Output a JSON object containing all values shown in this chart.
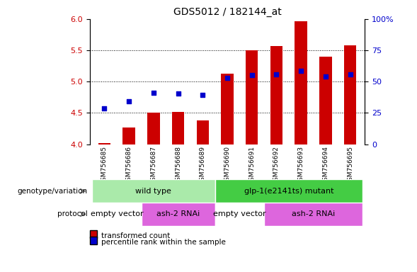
{
  "title": "GDS5012 / 182144_at",
  "samples": [
    "GSM756685",
    "GSM756686",
    "GSM756687",
    "GSM756688",
    "GSM756689",
    "GSM756690",
    "GSM756691",
    "GSM756692",
    "GSM756693",
    "GSM756694",
    "GSM756695"
  ],
  "bar_values": [
    4.02,
    4.27,
    4.5,
    4.52,
    4.38,
    5.13,
    5.5,
    5.57,
    5.97,
    5.4,
    5.58
  ],
  "dot_values": [
    4.57,
    4.68,
    4.82,
    4.81,
    4.79,
    5.06,
    5.1,
    5.11,
    5.17,
    5.08,
    5.12
  ],
  "bar_bottom": 4.0,
  "ylim_left": [
    4.0,
    6.0
  ],
  "ylim_right": [
    0,
    100
  ],
  "yticks_left": [
    4.0,
    4.5,
    5.0,
    5.5,
    6.0
  ],
  "yticks_right": [
    0,
    25,
    50,
    75,
    100
  ],
  "bar_color": "#cc0000",
  "dot_color": "#0000cc",
  "left_label_color": "#cc0000",
  "right_label_color": "#0000cc",
  "xtick_bg_color": "#cccccc",
  "genotype_groups": [
    {
      "label": "wild type",
      "start": 0,
      "end": 4,
      "color": "#aaeaaa"
    },
    {
      "label": "glp-1(e2141ts) mutant",
      "start": 5,
      "end": 10,
      "color": "#44cc44"
    }
  ],
  "protocol_groups": [
    {
      "label": "empty vector",
      "start": 0,
      "end": 1,
      "color": "#ffffff"
    },
    {
      "label": "ash-2 RNAi",
      "start": 2,
      "end": 4,
      "color": "#dd66dd"
    },
    {
      "label": "empty vector",
      "start": 5,
      "end": 6,
      "color": "#ffffff"
    },
    {
      "label": "ash-2 RNAi",
      "start": 7,
      "end": 10,
      "color": "#dd66dd"
    }
  ],
  "legend_items": [
    {
      "color": "#cc0000",
      "label": "transformed count"
    },
    {
      "color": "#0000cc",
      "label": "percentile rank within the sample"
    }
  ],
  "genotype_label": "genotype/variation",
  "protocol_label": "protocol"
}
